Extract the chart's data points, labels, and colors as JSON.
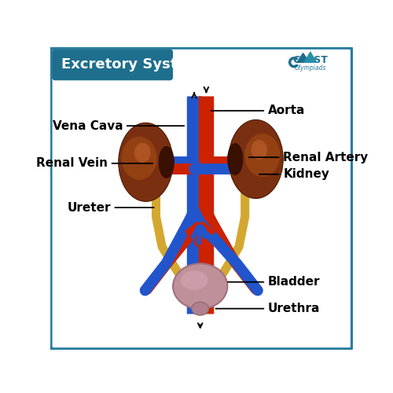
{
  "title": "Excretory System",
  "bg": "#ffffff",
  "border_color": "#2a7da0",
  "header_bg": "#1e6f8e",
  "header_text": "#ffffff",
  "red": "#cc2200",
  "blue": "#2255cc",
  "tan": "#d4a830",
  "kidney_dark": "#7a3010",
  "kidney_mid": "#9a4515",
  "kidney_light": "#c06030",
  "bladder_color": "#c0909a",
  "bladder_dark": "#a07080",
  "label_fs": 11,
  "label_bold": true,
  "labels": [
    "Aorta",
    "Vena Cava",
    "Renal Artery",
    "Renal Vein",
    "Kidney",
    "Ureter",
    "Bladder",
    "Urethra"
  ]
}
